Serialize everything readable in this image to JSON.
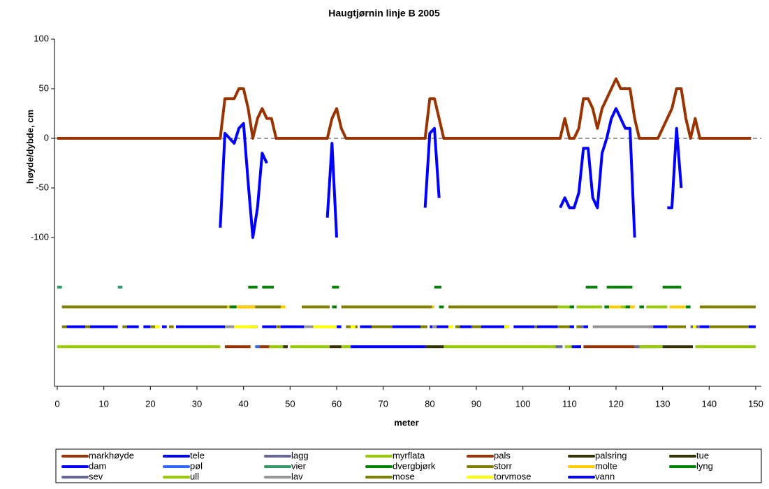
{
  "chart_data": {
    "type": "line",
    "title": "Haugtjørnin linje B 2005",
    "x_label": "meter",
    "y_label": "høyde/dybde, cm",
    "xlim": [
      -0.6,
      151.2
    ],
    "ylim": [
      -250,
      100
    ],
    "xticks": [
      0,
      10,
      20,
      30,
      40,
      50,
      60,
      70,
      80,
      90,
      100,
      110,
      120,
      130,
      140,
      150
    ],
    "yticks": [
      -100,
      -50,
      0,
      50,
      100
    ],
    "zero_line": true,
    "series": [
      {
        "name": "markhøyde",
        "color": "#993300",
        "x": [
          0,
          35,
          36,
          38,
          39,
          40,
          41,
          42,
          43,
          44,
          45,
          46,
          47,
          58,
          59,
          60,
          61,
          62,
          79,
          80,
          81,
          82,
          83,
          108,
          109,
          110,
          111,
          112,
          113,
          114,
          115,
          116,
          117,
          118,
          119,
          120,
          121,
          122,
          123,
          124,
          125,
          129,
          131,
          132,
          133,
          134,
          135,
          136,
          137,
          138,
          149
        ],
        "values": [
          0,
          0,
          40,
          40,
          50,
          50,
          30,
          0,
          20,
          30,
          20,
          20,
          0,
          0,
          20,
          30,
          10,
          0,
          0,
          40,
          40,
          20,
          0,
          0,
          20,
          0,
          0,
          10,
          40,
          40,
          30,
          10,
          30,
          40,
          50,
          60,
          50,
          50,
          50,
          20,
          0,
          0,
          20,
          30,
          50,
          50,
          20,
          0,
          20,
          0,
          0
        ]
      },
      {
        "name": "tele",
        "color": "#0000ff",
        "x": [
          35,
          36,
          38,
          39,
          40,
          41,
          42,
          43,
          44,
          45,
          51,
          58,
          59,
          60,
          70,
          79,
          80,
          81,
          82,
          95,
          108,
          109,
          110,
          111,
          112,
          113,
          114,
          115,
          116,
          117,
          118,
          119,
          120,
          121,
          122,
          123,
          124,
          128,
          131,
          132,
          133,
          134
        ],
        "values": [
          -90,
          5,
          -5,
          10,
          15,
          -45,
          -100,
          -70,
          -15,
          -25,
          null,
          -80,
          -5,
          -100,
          null,
          -70,
          5,
          10,
          -60,
          null,
          -70,
          -60,
          -70,
          -70,
          -55,
          -10,
          -10,
          -60,
          -70,
          -15,
          0,
          20,
          30,
          20,
          10,
          10,
          -100,
          null,
          -70,
          -70,
          10,
          -50
        ]
      },
      {
        "name": "lagg",
        "color": "#666699",
        "x": [
          107,
          108.5,
          116,
          124,
          129
        ],
        "values": [
          -210,
          -210,
          null,
          -210,
          -210
        ]
      },
      {
        "name": "myrflata",
        "color": "#99cc00",
        "x": [
          0,
          35,
          40,
          45,
          49,
          49.5,
          50,
          58.5,
          60,
          61,
          63,
          73,
          83,
          107,
          108,
          109,
          110.5,
          118,
          125,
          130,
          133,
          137,
          150
        ],
        "values": [
          -210,
          -210,
          null,
          -210,
          -210,
          null,
          -210,
          -210,
          null,
          -210,
          -210,
          null,
          -210,
          -210,
          null,
          -210,
          -210,
          null,
          -210,
          -210,
          null,
          -210,
          -210
        ]
      },
      {
        "name": "pals",
        "color": "#993300",
        "x": [
          36,
          41.5,
          42,
          43,
          45.5,
          80,
          113,
          124
        ],
        "values": [
          -210,
          -210,
          null,
          -210,
          -210,
          null,
          -210,
          -210
        ]
      },
      {
        "name": "palsring",
        "color": "#333300",
        "x": [
          48.5,
          49.5,
          54,
          58.5,
          61,
          70,
          79,
          83
        ],
        "values": [
          -210,
          -210,
          null,
          -210,
          -210,
          null,
          -210,
          -210
        ]
      },
      {
        "name": "tue",
        "color": "#333300",
        "x": [
          130,
          136.5
        ],
        "values": [
          -210,
          -210
        ]
      },
      {
        "name": "dam",
        "color": "#0000ff",
        "x": [
          2,
          6,
          6.5,
          7,
          13,
          14,
          15,
          17.5,
          18,
          18.5,
          20,
          21,
          22.5,
          23.5,
          24.5,
          25.5,
          36,
          39,
          41.5,
          43,
          43.5,
          44,
          47,
          47.5,
          48,
          53,
          56,
          60,
          61,
          63,
          65,
          67.5,
          70,
          72,
          78,
          79,
          80,
          84,
          85,
          86,
          89,
          90,
          91,
          97,
          97.5,
          98,
          102.5,
          102.8,
          103,
          107.5,
          109,
          110,
          111,
          112,
          113,
          114,
          120,
          127,
          131,
          134,
          138,
          140,
          144,
          148.5,
          150
        ],
        "values": [
          -190,
          -190,
          null,
          -190,
          -190,
          null,
          -190,
          -190,
          null,
          -190,
          -190,
          null,
          -190,
          -190,
          null,
          -190,
          -190,
          null,
          -190,
          -190,
          null,
          -190,
          -190,
          null,
          -190,
          -190,
          null,
          -190,
          -190,
          null,
          -190,
          -190,
          null,
          -190,
          -190,
          null,
          -190,
          -190,
          null,
          -190,
          -190,
          null,
          -190,
          -190,
          null,
          -190,
          -190,
          null,
          -190,
          -190,
          null,
          -190,
          -190,
          null,
          -190,
          -190,
          null,
          -190,
          -190,
          null,
          -190,
          -190,
          null,
          -190,
          -190
        ]
      },
      {
        "name": "pøl",
        "color": "#3366ff",
        "x": [
          42.5,
          43.5
        ],
        "values": [
          -210,
          -210
        ]
      },
      {
        "name": "vier",
        "color": "#339966",
        "x": [
          0,
          1,
          7,
          13,
          14
        ],
        "values": [
          -150,
          -150,
          null,
          -150,
          -150
        ]
      },
      {
        "name": "dvergbjørk",
        "color": "#008000",
        "x": [
          41,
          43,
          43.5,
          44,
          46.5,
          52,
          59,
          60.5,
          70,
          81,
          82.5,
          98,
          113.5,
          116,
          117,
          118,
          123.5,
          127,
          130,
          134
        ],
        "values": [
          -150,
          -150,
          null,
          -150,
          -150,
          null,
          -150,
          -150,
          null,
          -150,
          -150,
          null,
          -150,
          -150,
          null,
          -150,
          -150,
          null,
          -150,
          -150
        ]
      },
      {
        "name": "storr",
        "color": "#808000",
        "x": [
          1,
          36.5,
          38,
          39,
          48,
          50,
          52.5,
          58.5,
          60,
          61,
          80.5,
          82,
          84,
          107.5,
          120,
          138,
          150
        ],
        "values": [
          -170,
          -170,
          null,
          -170,
          -170,
          null,
          -170,
          -170,
          null,
          -170,
          -170,
          null,
          -170,
          -170,
          null,
          -170,
          -170
        ]
      },
      {
        "name": "molte",
        "color": "#ffcc00",
        "x": [
          36.5,
          42.5,
          45,
          48,
          49,
          65,
          80.5,
          81,
          100,
          118.5,
          121,
          122,
          123,
          124,
          128,
          131.5,
          135
        ],
        "values": [
          -170,
          -170,
          null,
          -170,
          -170,
          null,
          -170,
          -170,
          null,
          -170,
          -170,
          null,
          -170,
          -170,
          null,
          -170,
          -170
        ]
      },
      {
        "name": "lyng",
        "color": "#008000",
        "x": [
          37,
          38.5,
          49,
          59,
          60,
          70,
          82,
          83,
          96,
          110,
          111,
          114,
          117.5,
          118.5,
          120,
          122,
          123,
          124,
          125,
          126,
          130,
          135,
          136
        ],
        "values": [
          -170,
          -170,
          null,
          -170,
          -170,
          null,
          -170,
          -170,
          null,
          -170,
          -170,
          null,
          -170,
          -170,
          null,
          -170,
          -170,
          null,
          -170,
          -170,
          null,
          -170,
          -170
        ]
      },
      {
        "name": "sev",
        "color": "#666699",
        "x": [
          112,
          113,
          125,
          136,
          138
        ],
        "values": [
          -190,
          -190,
          null,
          -190,
          -190
        ]
      },
      {
        "name": "ull",
        "color": "#99cc00",
        "x": [
          107.5,
          110,
          111,
          111.5,
          117,
          119,
          121,
          122,
          124,
          126.5,
          131
        ],
        "values": [
          -170,
          -170,
          null,
          -170,
          -170,
          null,
          -170,
          -170,
          null,
          -170,
          -170
        ]
      },
      {
        "name": "lav",
        "color": "#969696",
        "x": [
          36,
          38,
          45,
          53,
          55,
          68,
          80.5,
          81.5,
          98,
          115,
          128
        ],
        "values": [
          -190,
          -190,
          null,
          -190,
          -190,
          null,
          -190,
          -190,
          null,
          -190,
          -190
        ]
      },
      {
        "name": "mose",
        "color": "#808000",
        "x": [
          1,
          2,
          4,
          6,
          7,
          10,
          14,
          15,
          17,
          20,
          21.5,
          22,
          24,
          25,
          36,
          47,
          48,
          55,
          62,
          64.5,
          66,
          67.5,
          72,
          75,
          78,
          79.5,
          82,
          85.5,
          86.5,
          88,
          89,
          91,
          96,
          102.5,
          103,
          105,
          107.5,
          110,
          111,
          111.5,
          112.5,
          122,
          131,
          135,
          138,
          140,
          148.5
        ],
        "values": [
          -190,
          -190,
          null,
          -190,
          -190,
          null,
          -190,
          -190,
          null,
          -190,
          -190,
          null,
          -190,
          -190,
          null,
          -190,
          -190,
          null,
          -190,
          -190,
          null,
          -190,
          -190,
          null,
          -190,
          -190,
          null,
          -190,
          -190,
          null,
          -190,
          -190,
          null,
          -190,
          -190,
          null,
          -190,
          -190,
          null,
          -190,
          -190,
          null,
          -190,
          -190,
          null,
          -190,
          -190
        ]
      },
      {
        "name": "torvmose",
        "color": "#ffff00",
        "x": [
          21,
          22,
          30,
          38,
          43,
          49,
          55,
          60,
          61.5,
          63,
          64,
          74,
          84,
          85,
          90,
          96,
          97,
          115,
          136.5,
          137.2
        ],
        "values": [
          -190,
          -190,
          null,
          -190,
          -190,
          null,
          -190,
          -190,
          null,
          -190,
          -190,
          null,
          -190,
          -190,
          null,
          -190,
          -190,
          null,
          -190,
          -190
        ]
      },
      {
        "name": "vann",
        "color": "#0000ff",
        "x": [
          63,
          79,
          95,
          110.5,
          112.5
        ],
        "values": [
          -210,
          -210,
          null,
          -210,
          -210
        ]
      }
    ]
  }
}
